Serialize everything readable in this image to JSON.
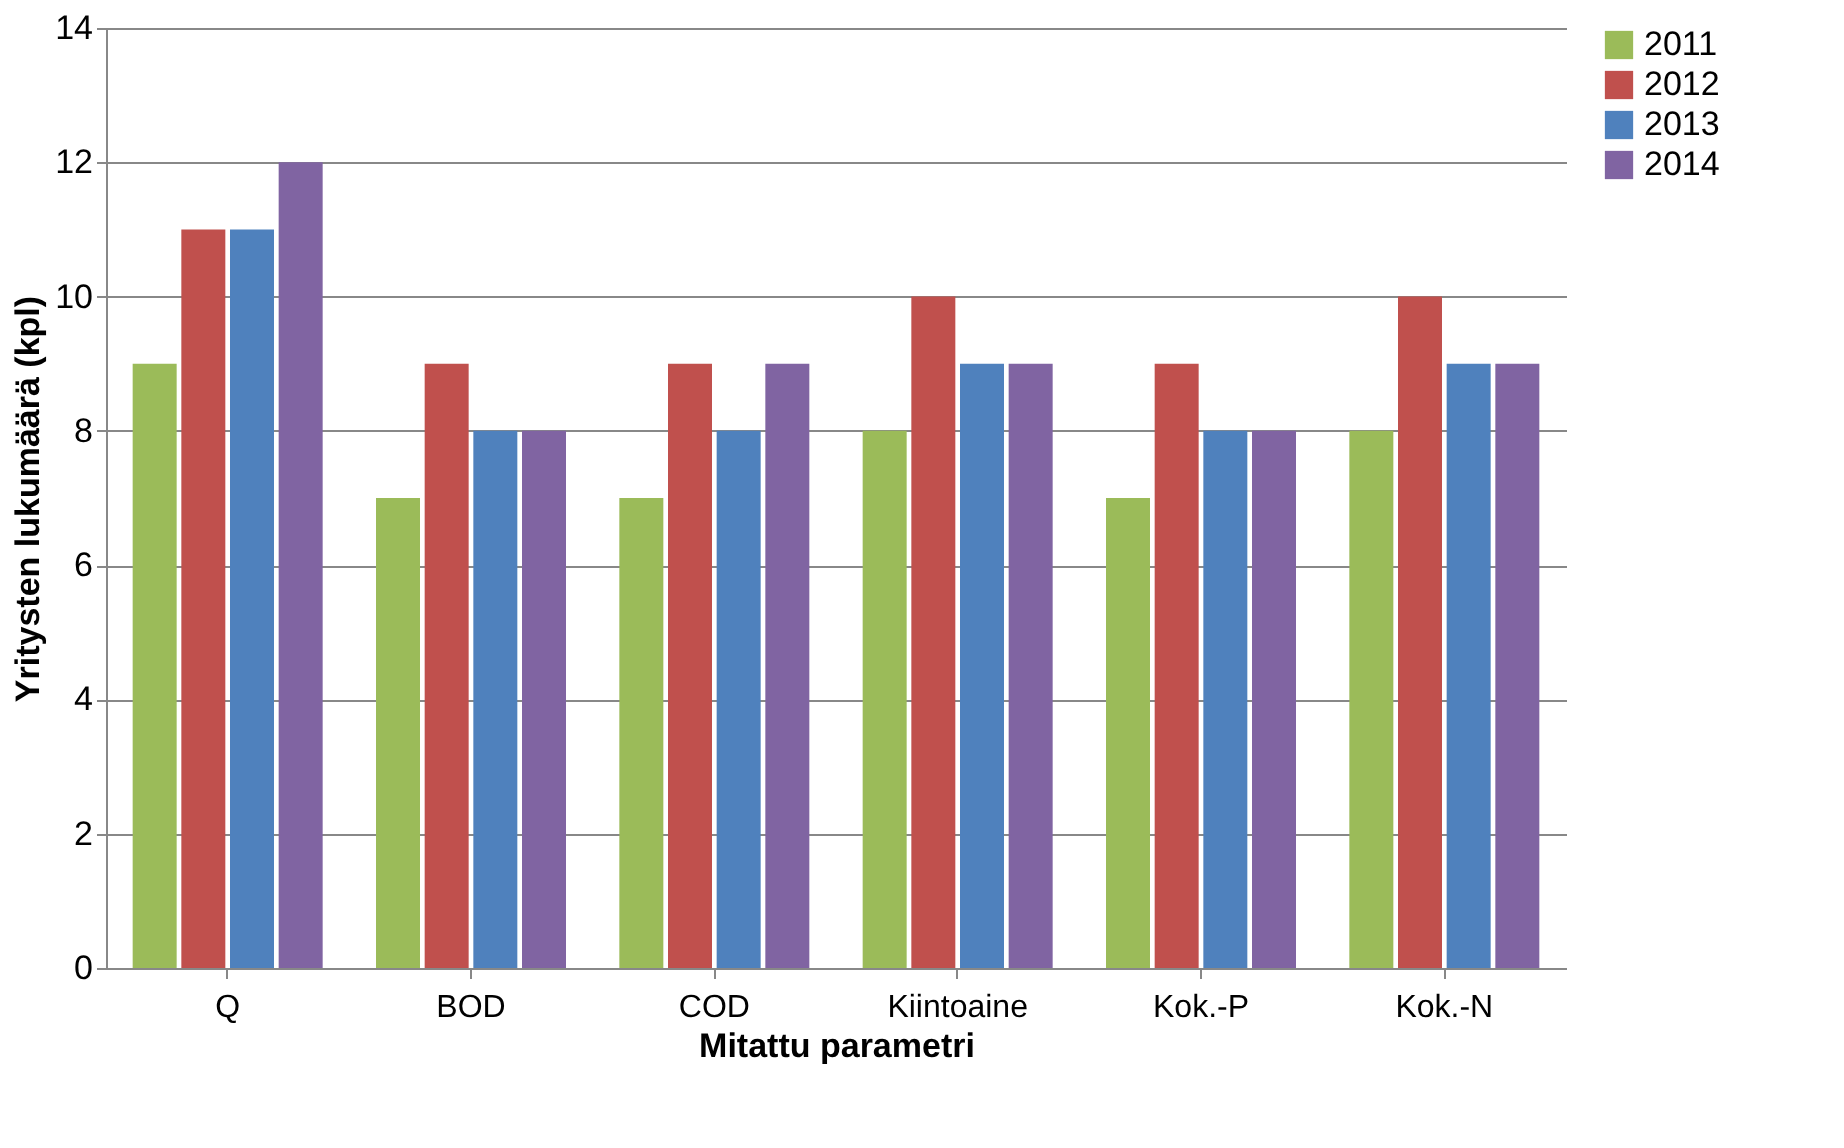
{
  "chart_data": {
    "type": "bar",
    "xlabel": "Mitattu parametri",
    "ylabel": "Yritysten lukumäärä (kpl)",
    "categories": [
      "Q",
      "BOD",
      "COD",
      "Kiintoaine",
      "Kok.-P",
      "Kok.-N"
    ],
    "series": [
      {
        "name": "2011",
        "color": "#9bbb59",
        "values": [
          9,
          7,
          7,
          8,
          7,
          8
        ]
      },
      {
        "name": "2012",
        "color": "#c0504d",
        "values": [
          11,
          9,
          9,
          10,
          9,
          10
        ]
      },
      {
        "name": "2013",
        "color": "#4f81bd",
        "values": [
          11,
          8,
          8,
          9,
          8,
          9
        ]
      },
      {
        "name": "2014",
        "color": "#8064a2",
        "values": [
          12,
          8,
          9,
          9,
          8,
          9
        ]
      }
    ],
    "ylim": [
      0,
      14
    ],
    "yticks": [
      0,
      2,
      4,
      6,
      8,
      10,
      12,
      14
    ],
    "grid": "y",
    "legend": "right"
  }
}
